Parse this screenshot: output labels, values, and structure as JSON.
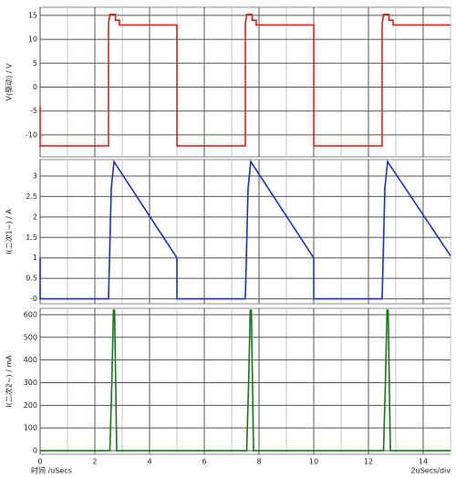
{
  "chart_data": [
    {
      "type": "line",
      "ylabel": "V(驱动) / V",
      "color": "#e0201b",
      "ylim": [
        -14.6,
        16.7
      ],
      "yticks": [
        -10,
        -5,
        0,
        5,
        10,
        15
      ],
      "grid": true,
      "x": [
        0,
        0,
        2.5,
        2.5,
        2.55,
        2.75,
        2.75,
        2.9,
        2.9,
        5,
        5,
        7.5,
        7.5,
        7.55,
        7.75,
        7.75,
        7.9,
        7.9,
        10,
        10,
        12.5,
        12.5,
        12.55,
        12.75,
        12.75,
        12.9,
        12.9,
        15
      ],
      "values": [
        -4,
        -12.3,
        -12.3,
        13.2,
        15.2,
        15.2,
        14,
        14,
        13,
        13,
        -12.3,
        -12.3,
        13.2,
        15.2,
        15.2,
        14,
        14,
        13,
        13,
        -12.3,
        -12.3,
        13.2,
        15.2,
        15.2,
        14,
        14,
        13,
        13
      ]
    },
    {
      "type": "line",
      "ylabel": "I(二次1~) / A",
      "color": "#1f2fc8",
      "ylim": [
        -0.12,
        3.4
      ],
      "yticks": [
        {
          "value": 0,
          "label": "-0"
        },
        0.5,
        1,
        1.5,
        2,
        2.5,
        3
      ],
      "grid": true,
      "x": [
        0,
        0,
        2.5,
        2.6,
        2.7,
        5,
        5,
        7.5,
        7.6,
        7.7,
        10,
        10,
        12.5,
        12.6,
        12.7,
        15
      ],
      "values": [
        1,
        0,
        0,
        2.7,
        3.35,
        1,
        0,
        0,
        2.7,
        3.35,
        1,
        0,
        0,
        2.7,
        3.35,
        1.05
      ]
    },
    {
      "type": "line",
      "ylabel": "I(二次2~) / mA",
      "color": "#137a13",
      "ylim": [
        -16,
        628
      ],
      "yticks": [
        0,
        100,
        200,
        300,
        400,
        500,
        600
      ],
      "grid": true,
      "x": [
        0,
        2.55,
        2.62,
        2.68,
        2.72,
        2.8,
        7.55,
        7.62,
        7.68,
        7.72,
        7.8,
        12.55,
        12.62,
        12.68,
        12.72,
        12.8,
        15
      ],
      "values": [
        0,
        0,
        300,
        620,
        620,
        0,
        0,
        300,
        620,
        620,
        0,
        0,
        300,
        620,
        620,
        0,
        0
      ],
      "xlabel": "时间 /uSecs",
      "xscale_label": "2uSecs/div",
      "xlim": [
        0,
        15
      ],
      "xticks": [
        0,
        2,
        4,
        6,
        8,
        10,
        12,
        14
      ],
      "x_minor_grid": [
        1,
        3,
        5,
        7,
        9,
        11,
        13,
        15
      ]
    }
  ]
}
